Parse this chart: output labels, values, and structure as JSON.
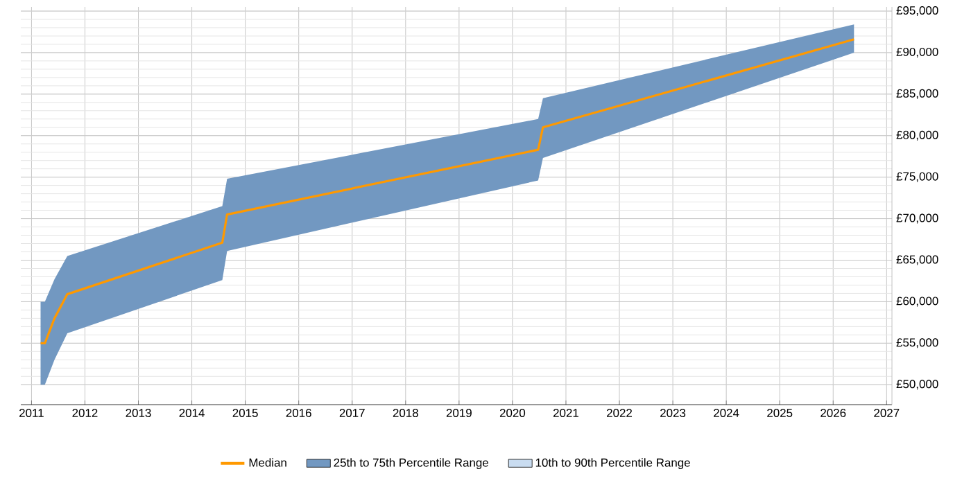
{
  "chart_data": {
    "type": "line",
    "x": [
      2011.17,
      2011.25,
      2011.43,
      2011.67,
      2014.57,
      2014.66,
      2020.48,
      2020.57,
      2026.39
    ],
    "series": [
      {
        "name": "Median",
        "color": "#ff9900",
        "values": [
          55000,
          55000,
          58000,
          60900,
          67100,
          70500,
          78300,
          81000,
          91600
        ],
        "lower": [
          50000,
          50000,
          53000,
          56200,
          62600,
          66100,
          74600,
          77300,
          90000
        ],
        "upper": [
          60000,
          60000,
          62700,
          65500,
          71500,
          74800,
          82000,
          84500,
          93400
        ]
      },
      {
        "name": "25th to 75th Percentile Range",
        "type": "area",
        "color": "#7298c1",
        "values": [
          null,
          null,
          null,
          null,
          null,
          null,
          null,
          null,
          null
        ]
      },
      {
        "name": "10th to 90th Percentile Range",
        "type": "area",
        "color": "#c9dcf0",
        "values": [
          null,
          null,
          null,
          null,
          null,
          null,
          null,
          null,
          null
        ]
      }
    ],
    "xlim": [
      2010.8,
      2027.1
    ],
    "ylim": [
      47600,
      95500
    ],
    "xticks": [
      2011,
      2012,
      2013,
      2014,
      2015,
      2016,
      2017,
      2018,
      2019,
      2020,
      2021,
      2022,
      2023,
      2024,
      2025,
      2026,
      2027
    ],
    "yticks": [
      {
        "value": 50000,
        "label": "£50,000"
      },
      {
        "value": 55000,
        "label": "£55,000"
      },
      {
        "value": 60000,
        "label": "£60,000"
      },
      {
        "value": 65000,
        "label": "£65,000"
      },
      {
        "value": 70000,
        "label": "£70,000"
      },
      {
        "value": 75000,
        "label": "£75,000"
      },
      {
        "value": 80000,
        "label": "£80,000"
      },
      {
        "value": 85000,
        "label": "£85,000"
      },
      {
        "value": 90000,
        "label": "£90,000"
      },
      {
        "value": 95000,
        "label": "£95,000"
      }
    ],
    "grid": true,
    "legend": "bottom"
  }
}
